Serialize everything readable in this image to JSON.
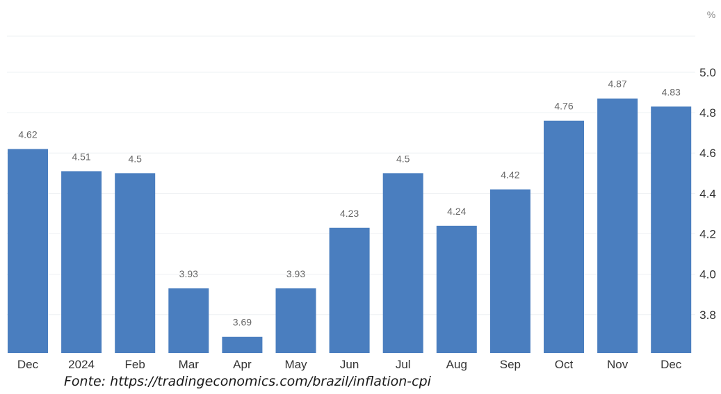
{
  "chart_data": {
    "type": "bar",
    "unit": "%",
    "categories": [
      "Dec",
      "2024",
      "Feb",
      "Mar",
      "Apr",
      "May",
      "Jun",
      "Jul",
      "Aug",
      "Sep",
      "Oct",
      "Nov",
      "Dec"
    ],
    "values": [
      4.62,
      4.51,
      4.5,
      3.93,
      3.69,
      3.93,
      4.23,
      4.5,
      4.24,
      4.42,
      4.76,
      4.87,
      4.83
    ],
    "value_labels": [
      "4.62",
      "4.51",
      "4.5",
      "3.93",
      "3.69",
      "3.93",
      "4.23",
      "4.5",
      "4.24",
      "4.42",
      "4.76",
      "4.87",
      "4.83"
    ],
    "y_ticks": [
      3.8,
      4.0,
      4.2,
      4.4,
      4.6,
      4.8,
      5.0
    ],
    "y_tick_labels": [
      "3.8",
      "4.0",
      "4.2",
      "4.4",
      "4.6",
      "4.8",
      "5.0"
    ],
    "ylim": [
      3.61,
      5.22
    ],
    "y_axis_side": "right",
    "grid": true,
    "bar_color": "#4a7ebf"
  },
  "source_text": "Fonte: https://tradingeconomics.com/brazil/inflation-cpi"
}
